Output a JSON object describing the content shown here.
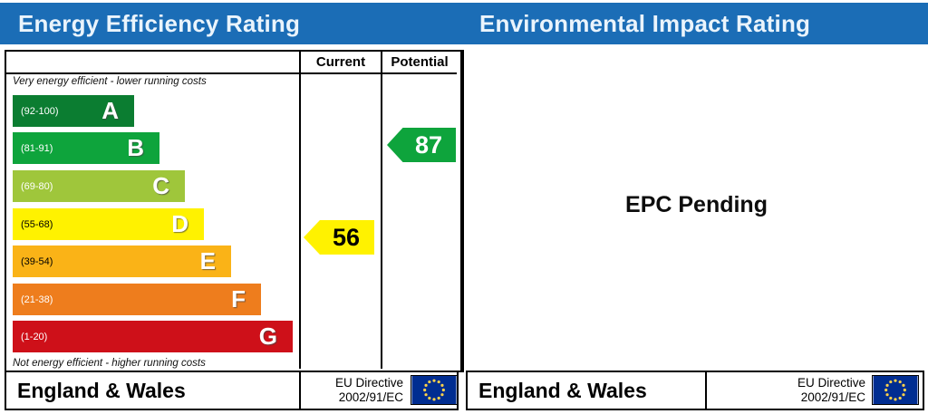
{
  "header": {
    "bar_color": "#1b6db6",
    "left_title": "Energy Efficiency Rating",
    "right_title": "Environmental Impact Rating"
  },
  "chart_data": {
    "type": "bar",
    "title": "Energy Efficiency Rating",
    "columns": {
      "current_label": "Current",
      "potential_label": "Potential"
    },
    "top_note": "Very energy efficient - lower running costs",
    "bottom_note": "Not energy efficient - higher running costs",
    "bands": [
      {
        "letter": "A",
        "range_label": "(92-100)",
        "min": 92,
        "max": 100,
        "color": "#0b7d31",
        "range_text_color": "#ffffff"
      },
      {
        "letter": "B",
        "range_label": "(81-91)",
        "min": 81,
        "max": 91,
        "color": "#0ea43c",
        "range_text_color": "#ffffff"
      },
      {
        "letter": "C",
        "range_label": "(69-80)",
        "min": 69,
        "max": 80,
        "color": "#9fc63b",
        "range_text_color": "#ffffff"
      },
      {
        "letter": "D",
        "range_label": "(55-68)",
        "min": 55,
        "max": 68,
        "color": "#fff200",
        "range_text_color": "#000000"
      },
      {
        "letter": "E",
        "range_label": "(39-54)",
        "min": 39,
        "max": 54,
        "color": "#fab317",
        "range_text_color": "#000000"
      },
      {
        "letter": "F",
        "range_label": "(21-38)",
        "min": 21,
        "max": 38,
        "color": "#ee7d1d",
        "range_text_color": "#ffffff"
      },
      {
        "letter": "G",
        "range_label": "(1-20)",
        "min": 1,
        "max": 20,
        "color": "#ce1019",
        "range_text_color": "#ffffff"
      }
    ],
    "current": {
      "value": 56,
      "arrow_color": "#fff200",
      "text_color": "#000000"
    },
    "potential": {
      "value": 87,
      "arrow_color": "#0ea43c",
      "text_color": "#ffffff"
    },
    "layout": {
      "band_tops": [
        48,
        89,
        131,
        173,
        214,
        256,
        297
      ],
      "band_widths": [
        134,
        162,
        190,
        211,
        241,
        274,
        309
      ],
      "band_height": 35,
      "arrow_height": 38
    }
  },
  "right_panel": {
    "status_text": "EPC Pending"
  },
  "footer": {
    "region_label": "England & Wales",
    "directive_line1": "EU Directive",
    "directive_line2": "2002/91/EC",
    "flag_color": "#002d91",
    "star_color": "#ffd24a"
  }
}
